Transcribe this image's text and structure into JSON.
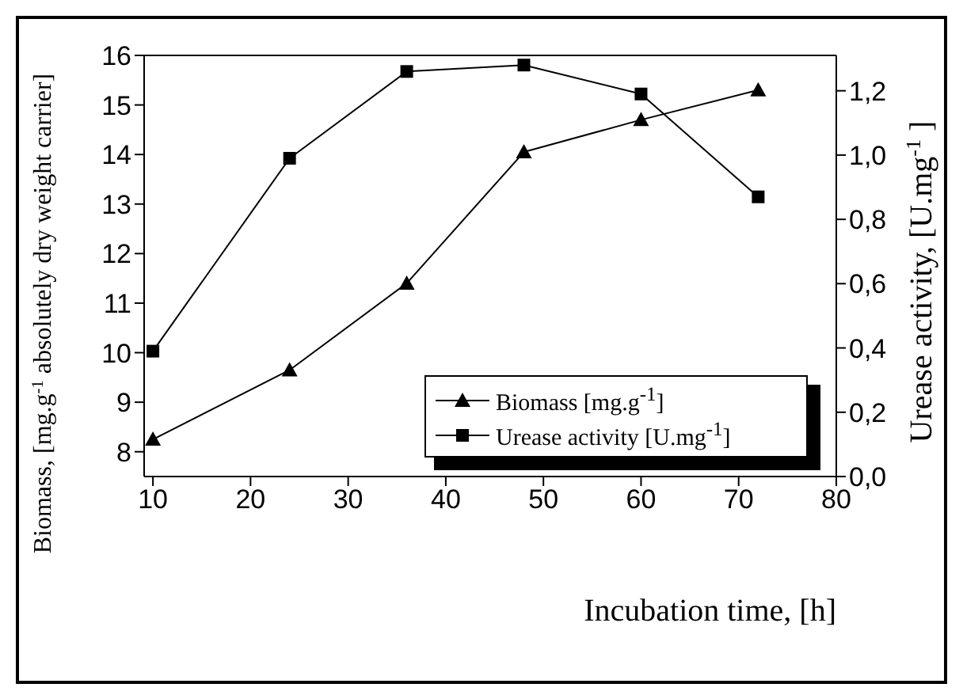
{
  "chart_data": {
    "type": "line",
    "xlabel": "Incubation time, [h]",
    "ylabel": "Biomass, [mg.g$^{-1}$ absolutely dry weight carrier]",
    "y2label": "Urease activity, [U.mg$^{-1}$]",
    "x": [
      10,
      24,
      36,
      48,
      60,
      72
    ],
    "series": [
      {
        "name": "Biomass [mg.g$^{-1}$]",
        "color": "#000000",
        "marker": "triangle",
        "values": [
          8.25,
          9.65,
          11.4,
          14.05,
          14.7,
          15.3
        ]
      },
      {
        "name": "Urease activity [U.mg$^{-1}$]",
        "color": "#000000",
        "marker": "square",
        "axis": "y2",
        "values": [
          0.39,
          0.99,
          1.26,
          1.28,
          1.19,
          0.87
        ]
      }
    ],
    "xlim": [
      9.1,
      80
    ],
    "xticks": [
      10,
      20,
      30,
      40,
      50,
      60,
      70,
      80
    ],
    "ylim": [
      7.5,
      16
    ],
    "yticks": [
      8,
      9,
      10,
      11,
      12,
      13,
      14,
      15,
      16
    ],
    "y2lim": [
      0,
      1.31
    ],
    "y2ticks": [
      {
        "value": 0,
        "label": "0,0"
      },
      {
        "value": 0.2,
        "label": "0,2"
      },
      {
        "value": 0.4,
        "label": "0,4"
      },
      {
        "value": 0.6,
        "label": "0,6"
      },
      {
        "value": 0.8,
        "label": "0,8"
      },
      {
        "value": 1.0,
        "label": "1,0"
      },
      {
        "value": 1.2,
        "label": "1,2"
      }
    ],
    "legend": "right",
    "grid": false
  }
}
